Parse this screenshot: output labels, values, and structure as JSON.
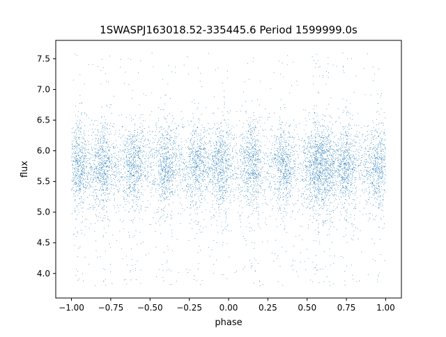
{
  "chart_data": {
    "type": "scatter",
    "title": "1SWASPJ163018.52-335445.6 Period 1599999.0s",
    "xlabel": "phase",
    "ylabel": "flux",
    "xlim": [
      -1.1,
      1.1
    ],
    "ylim": [
      3.6,
      7.8
    ],
    "xticks": [
      -1.0,
      -0.75,
      -0.5,
      -0.25,
      0.0,
      0.25,
      0.5,
      0.75,
      1.0
    ],
    "xtick_labels": [
      "−1.00",
      "−0.75",
      "−0.50",
      "−0.25",
      "0.00",
      "0.25",
      "0.50",
      "0.75",
      "1.00"
    ],
    "yticks": [
      4.0,
      4.5,
      5.0,
      5.5,
      6.0,
      6.5,
      7.0,
      7.5
    ],
    "ytick_labels": [
      "4.0",
      "4.5",
      "5.0",
      "5.5",
      "6.0",
      "6.5",
      "7.0",
      "7.5"
    ],
    "grid": false,
    "marker_color": "#1f77b4",
    "series": [
      {
        "point_count": 9000,
        "x_range": [
          -1.0,
          1.0
        ],
        "baseline_flux": 5.75,
        "typical_scatter": 0.35,
        "min_flux": 3.8,
        "max_flux": 7.6,
        "dense_clusters_phase": [
          -0.95,
          -0.8,
          -0.6,
          -0.4,
          -0.2,
          -0.05,
          0.15,
          0.35,
          0.55,
          0.62,
          0.75,
          0.95
        ]
      }
    ]
  }
}
